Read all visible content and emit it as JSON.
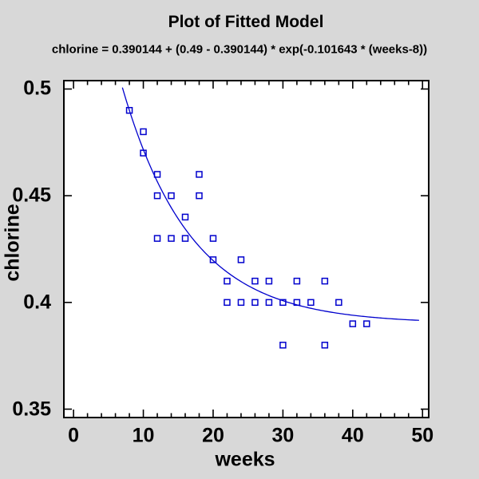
{
  "window": {
    "bg_color": "#d8d8d8",
    "plot_bg_color": "#ffffff",
    "frame_color": "#000000",
    "text_color": "#000000",
    "series_color": "#0000cd"
  },
  "header": {
    "title": "Plot of Fitted Model",
    "equation": "chlorine = 0.390144 + (0.49 - 0.390144) * exp(-0.101643 * (weeks-8))"
  },
  "chart_data": {
    "type": "scatter",
    "title": "Plot of Fitted Model",
    "subtitle": "chlorine = 0.390144 + (0.49 - 0.390144) * exp(-0.101643 * (weeks-8))",
    "xlabel": "weeks",
    "ylabel": "chlorine",
    "xlim": [
      -1.5,
      51.0
    ],
    "ylim": [
      0.3457,
      0.5043
    ],
    "grid": false,
    "legend": "none",
    "x_ticks_major": [
      0,
      10,
      20,
      30,
      40,
      50
    ],
    "x_tick_labels": [
      "0",
      "10",
      "20",
      "30",
      "40",
      "50"
    ],
    "x_minor_tick_step": 2,
    "y_ticks_major": [
      0.35,
      0.4,
      0.45,
      0.5
    ],
    "y_tick_labels": [
      "0.35",
      "0.4",
      "0.45",
      "0.5"
    ],
    "marker": "open-square",
    "points": [
      [
        8,
        0.49
      ],
      [
        10,
        0.48
      ],
      [
        10,
        0.47
      ],
      [
        12,
        0.46
      ],
      [
        12,
        0.45
      ],
      [
        12,
        0.43
      ],
      [
        14,
        0.45
      ],
      [
        14,
        0.43
      ],
      [
        16,
        0.44
      ],
      [
        16,
        0.43
      ],
      [
        18,
        0.46
      ],
      [
        18,
        0.45
      ],
      [
        20,
        0.43
      ],
      [
        20,
        0.42
      ],
      [
        22,
        0.41
      ],
      [
        22,
        0.4
      ],
      [
        24,
        0.42
      ],
      [
        24,
        0.4
      ],
      [
        26,
        0.41
      ],
      [
        26,
        0.4
      ],
      [
        28,
        0.41
      ],
      [
        28,
        0.4
      ],
      [
        30,
        0.4
      ],
      [
        30,
        0.38
      ],
      [
        32,
        0.41
      ],
      [
        32,
        0.4
      ],
      [
        34,
        0.4
      ],
      [
        36,
        0.41
      ],
      [
        36,
        0.38
      ],
      [
        38,
        0.4
      ],
      [
        40,
        0.39
      ],
      [
        42,
        0.39
      ]
    ],
    "fitted_model": {
      "formula": "chlorine = b0 + (y0 - b0) * exp(-k * (weeks - 8))",
      "b0": 0.390144,
      "y0": 0.49,
      "k": 0.101643,
      "x_start": 7,
      "x_end": 49.6
    }
  }
}
